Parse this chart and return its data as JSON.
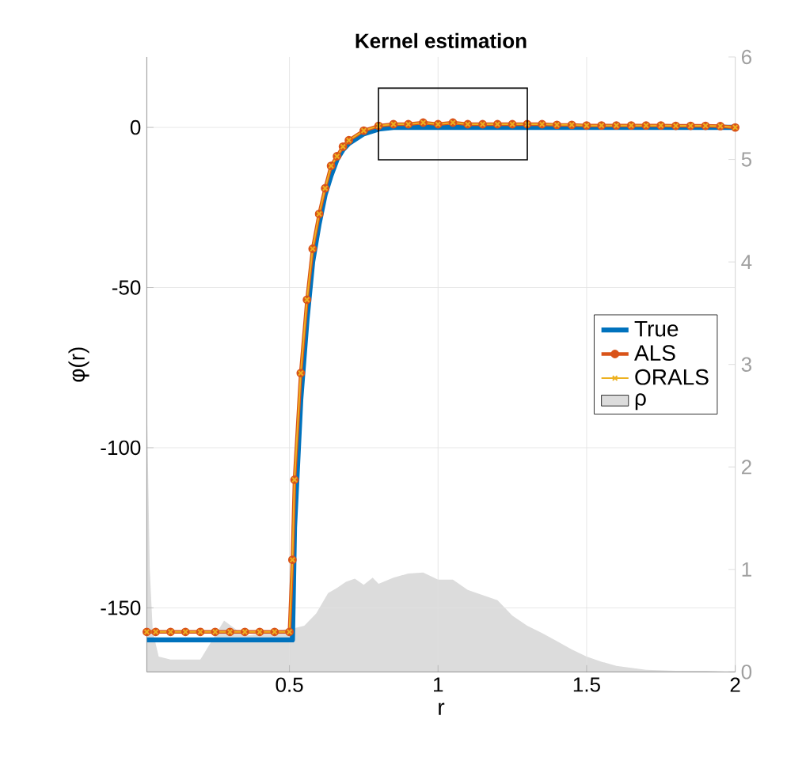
{
  "chart_data": {
    "type": "line",
    "title": "Kernel estimation",
    "xlabel": "r",
    "ylabel": "φ(r)",
    "x": [
      0.02,
      0.05,
      0.1,
      0.15,
      0.2,
      0.25,
      0.3,
      0.35,
      0.4,
      0.45,
      0.5,
      0.51,
      0.517,
      0.538,
      0.559,
      0.578,
      0.6,
      0.62,
      0.64,
      0.66,
      0.68,
      0.7,
      0.75,
      0.8,
      0.85,
      0.9,
      0.95,
      1,
      1.05,
      1.1,
      1.15,
      1.2,
      1.25,
      1.3,
      1.35,
      1.4,
      1.45,
      1.5,
      1.55,
      1.6,
      1.65,
      1.7,
      1.75,
      1.8,
      1.85,
      1.9,
      1.95,
      2
    ],
    "series": [
      {
        "name": "True",
        "color": "#0072bd",
        "marker": "none",
        "values": [
          -160,
          -160,
          -160,
          -160,
          -160,
          -160,
          -160,
          -160,
          -160,
          -160,
          -160,
          -160,
          -125,
          -85,
          -60,
          -42,
          -30,
          -21,
          -15,
          -10,
          -7,
          -5,
          -2,
          -0.5,
          0,
          0,
          0,
          0,
          0,
          0,
          0,
          0,
          0,
          0,
          0,
          0,
          0,
          0,
          0,
          0,
          0,
          0,
          0,
          0,
          0,
          0,
          0,
          0
        ]
      },
      {
        "name": "ALS",
        "color": "#d95319",
        "marker": "circle",
        "values": [
          -157.5,
          -157.5,
          -157.5,
          -157.5,
          -157.5,
          -157.5,
          -157.5,
          -157.5,
          -157.5,
          -157.5,
          -157.5,
          -135,
          -110,
          -76.7,
          -53.8,
          -37.9,
          -27,
          -19,
          -12,
          -9,
          -6,
          -4,
          -1,
          0.5,
          1,
          1,
          1.5,
          1,
          1.5,
          1,
          1,
          1,
          1,
          1,
          1,
          0.8,
          0.8,
          0.6,
          0.6,
          0.6,
          0.6,
          0.6,
          0.6,
          0.5,
          0.5,
          0.5,
          0.4,
          0
        ]
      },
      {
        "name": "ORALS",
        "color": "#edb120",
        "marker": "cross",
        "values": [
          -157.5,
          -157.5,
          -157.5,
          -157.5,
          -157.5,
          -157.5,
          -157.5,
          -157.5,
          -157.5,
          -157.5,
          -157.5,
          -135,
          -110,
          -76.7,
          -53.8,
          -37.9,
          -27,
          -19,
          -12,
          -9,
          -6,
          -4,
          -1,
          0.5,
          1,
          1,
          1.5,
          1,
          1.5,
          1,
          1,
          1,
          1,
          1,
          1,
          0.8,
          0.8,
          0.6,
          0.6,
          0.6,
          0.6,
          0.6,
          0.6,
          0.5,
          0.5,
          0.5,
          0.4,
          0
        ]
      },
      {
        "name": "ρ",
        "type": "area",
        "axis": "y2",
        "color": "#dcdcdc",
        "x": [
          0.02,
          0.03,
          0.04,
          0.06,
          0.1,
          0.2,
          0.28,
          0.35,
          0.45,
          0.52,
          0.55,
          0.59,
          0.63,
          0.66,
          0.69,
          0.72,
          0.75,
          0.78,
          0.8,
          0.85,
          0.9,
          0.95,
          1,
          1.05,
          1.1,
          1.15,
          1.2,
          1.25,
          1.3,
          1.35,
          1.4,
          1.45,
          1.5,
          1.55,
          1.6,
          1.7,
          1.8,
          1.9,
          2
        ],
        "values": [
          2.7,
          1.0,
          0.4,
          0.15,
          0.12,
          0.12,
          0.5,
          0.35,
          0.4,
          0.43,
          0.45,
          0.57,
          0.77,
          0.82,
          0.88,
          0.91,
          0.85,
          0.92,
          0.86,
          0.92,
          0.96,
          0.97,
          0.9,
          0.9,
          0.8,
          0.75,
          0.7,
          0.55,
          0.45,
          0.38,
          0.3,
          0.22,
          0.15,
          0.1,
          0.06,
          0.02,
          0.01,
          0.01,
          0
        ]
      }
    ],
    "xlim": [
      0.02,
      2
    ],
    "ylim": [
      -170,
      22
    ],
    "y2lim": [
      0,
      6
    ],
    "xticks": [
      0.5,
      1,
      1.5,
      2
    ],
    "yticks": [
      -150,
      -100,
      -50,
      0
    ],
    "y2ticks": [
      0,
      1,
      2,
      3,
      4,
      5,
      6
    ],
    "grid": true,
    "legend": "right"
  }
}
